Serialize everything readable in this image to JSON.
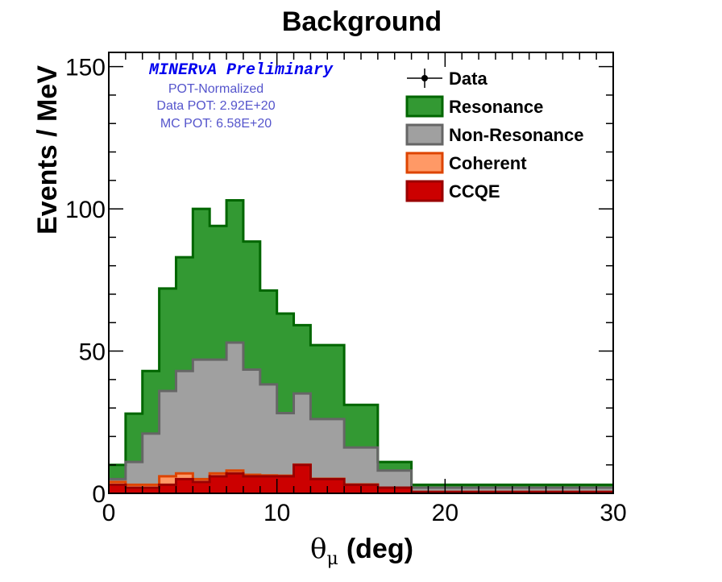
{
  "chart_data": {
    "type": "area",
    "title": "Background",
    "xlabel": "(deg)",
    "xlabel_symbol": "θ",
    "xlabel_sub": "μ",
    "ylabel": "Events / MeV",
    "xlim": [
      0,
      30
    ],
    "ylim": [
      0,
      155
    ],
    "x_ticks": [
      0,
      10,
      20,
      30
    ],
    "y_ticks": [
      0,
      50,
      100,
      150
    ],
    "grid": false,
    "legend_position": "top-right",
    "bin_edges": [
      0,
      1,
      2,
      3,
      4,
      5,
      6,
      7,
      8,
      9,
      10,
      11,
      12,
      14,
      16,
      18,
      30
    ],
    "stack_order": [
      "CCQE",
      "Coherent",
      "Non-Resonance",
      "Resonance"
    ],
    "series": [
      {
        "name": "CCQE",
        "fill": "#cc0000",
        "stroke": "#990000",
        "values": [
          3,
          2,
          2,
          3,
          5,
          4,
          6,
          7,
          6,
          6,
          6,
          10,
          5,
          3,
          2,
          0.5
        ]
      },
      {
        "name": "Coherent",
        "fill": "#ff9966",
        "stroke": "#dd4400",
        "values": [
          1,
          1,
          1,
          3,
          2,
          1,
          1,
          1,
          0.5,
          0.3,
          0.2,
          0.1,
          0.1,
          0.1,
          0,
          0
        ]
      },
      {
        "name": "Non-Resonance",
        "fill": "#a0a0a0",
        "stroke": "#666666",
        "values": [
          1,
          8,
          18,
          30,
          36,
          42,
          40,
          45,
          37,
          32,
          22,
          25,
          21,
          13,
          6,
          1.5
        ]
      },
      {
        "name": "Resonance",
        "fill": "#339933",
        "stroke": "#006600",
        "values": [
          5,
          17,
          22,
          36,
          40,
          53,
          47,
          50,
          45,
          33,
          35,
          24,
          26,
          15,
          3,
          1
        ]
      }
    ],
    "legend": [
      {
        "label": "Data",
        "kind": "marker"
      },
      {
        "label": "Resonance",
        "kind": "box",
        "fill": "#339933",
        "stroke": "#006600"
      },
      {
        "label": "Non-Resonance",
        "kind": "box",
        "fill": "#a0a0a0",
        "stroke": "#666666"
      },
      {
        "label": "Coherent",
        "kind": "box",
        "fill": "#ff9966",
        "stroke": "#dd4400"
      },
      {
        "label": "CCQE",
        "kind": "box",
        "fill": "#cc0000",
        "stroke": "#990000"
      }
    ],
    "annotations": {
      "preliminary": "MINERνA Preliminary",
      "pot_lines": [
        "POT-Normalized",
        "Data POT: 2.92E+20",
        "MC POT: 6.58E+20"
      ]
    }
  }
}
